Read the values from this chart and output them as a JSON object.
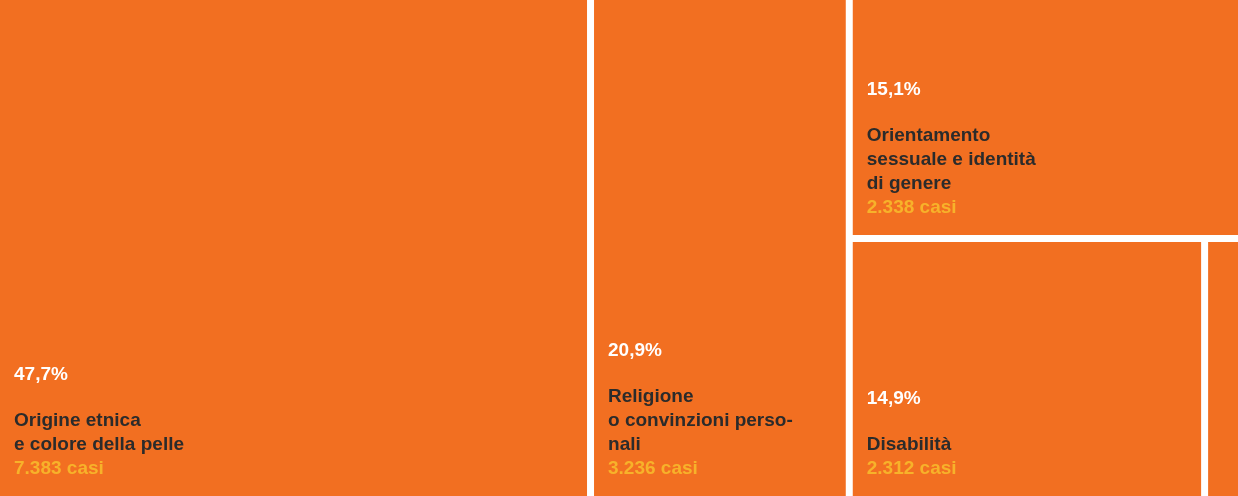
{
  "chart_data": {
    "type": "other",
    "categories": [
      "Origine etnica\ne colore della pelle",
      "Religione\no convinzioni perso-\nnali",
      "Orientamento\nsessuale e identità\ndi genere",
      "Disabilità",
      null
    ],
    "values": [
      47.7,
      20.9,
      15.1,
      14.9,
      null
    ],
    "value_labels": [
      "47,7%",
      "20,9%",
      "15,1%",
      "14,9%",
      null
    ],
    "colors": [
      "#f26f21",
      "#f26f21",
      "#f26f21",
      "#f26f21",
      "#f26f21"
    ],
    "annotations": [
      {
        "text": "7.383 casi",
        "x": "Origine etnica\ne colore della pelle"
      },
      {
        "text": "3.236 casi",
        "x": "Religione\no convinzioni perso-\nnali"
      },
      {
        "text": "2.338 casi",
        "x": "Orientamento\nsessuale e identità\ndi genere"
      },
      {
        "text": "2.312 casi",
        "x": "Disabilità"
      }
    ]
  }
}
